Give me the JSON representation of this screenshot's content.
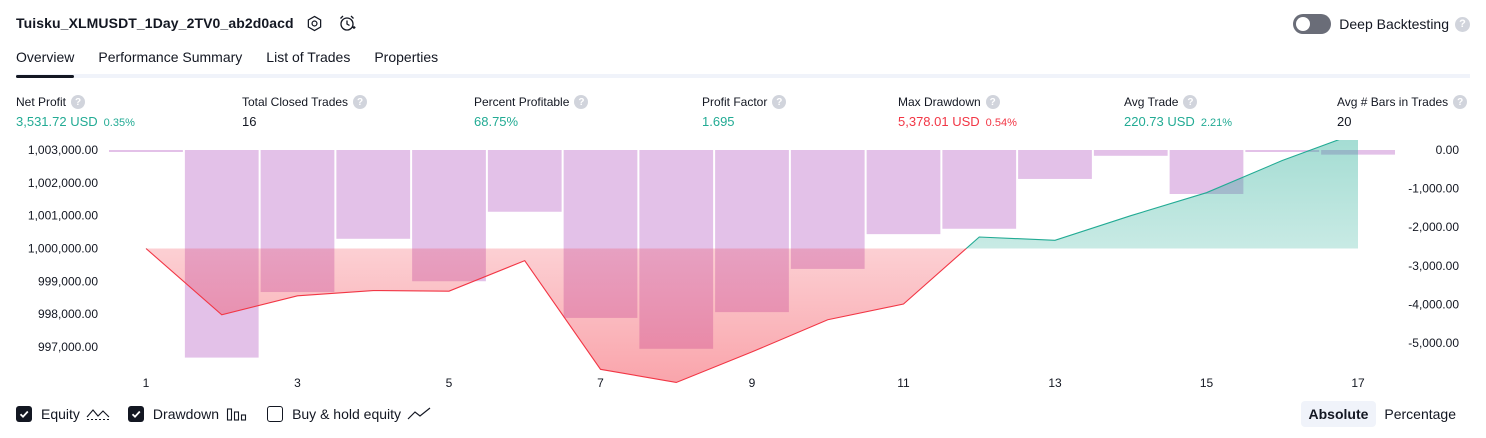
{
  "header": {
    "title": "Tuisku_XLMUSDT_1Day_2TV0_ab2d0acd",
    "deep_backtesting_label": "Deep Backtesting",
    "help_glyph": "?"
  },
  "tabs": [
    {
      "label": "Overview",
      "active": true
    },
    {
      "label": "Performance Summary",
      "active": false
    },
    {
      "label": "List of Trades",
      "active": false
    },
    {
      "label": "Properties",
      "active": false
    }
  ],
  "stats": {
    "net_profit": {
      "label": "Net Profit",
      "value": "3,531.72 USD",
      "pct": "0.35%"
    },
    "total_closed_trades": {
      "label": "Total Closed Trades",
      "value": "16"
    },
    "percent_profitable": {
      "label": "Percent Profitable",
      "value": "68.75%"
    },
    "profit_factor": {
      "label": "Profit Factor",
      "value": "1.695"
    },
    "max_drawdown": {
      "label": "Max Drawdown",
      "value": "5,378.01 USD",
      "pct": "0.54%"
    },
    "avg_trade": {
      "label": "Avg Trade",
      "value": "220.73 USD",
      "pct": "2.21%"
    },
    "avg_bars": {
      "label": "Avg # Bars in Trades",
      "value": "20"
    }
  },
  "legend": {
    "equity": "Equity",
    "drawdown": "Drawdown",
    "buy_hold": "Buy & hold equity",
    "equity_checked": true,
    "drawdown_checked": true,
    "buy_hold_checked": false
  },
  "mode": {
    "absolute": "Absolute",
    "percentage": "Percentage",
    "selected": "Absolute"
  },
  "colors": {
    "accent_green": "#22ab94",
    "accent_red": "#f23645",
    "drawdown_bar": "#ce93d8"
  },
  "chart_data": {
    "type": "line+bar",
    "x": [
      1,
      2,
      3,
      4,
      5,
      6,
      7,
      8,
      9,
      10,
      11,
      12,
      13,
      14,
      15,
      16,
      17
    ],
    "x_tick_labels": [
      "1",
      "3",
      "5",
      "7",
      "9",
      "11",
      "13",
      "15",
      "17"
    ],
    "left_axis": {
      "ticks": [
        997000,
        998000,
        999000,
        1000000,
        1001000,
        1002000,
        1003000
      ],
      "tick_labels": [
        "997,000.00",
        "998,000.00",
        "999,000.00",
        "1,000,000.00",
        "1,001,000.00",
        "1,002,000.00",
        "1,003,000.00"
      ],
      "ylim": [
        996700,
        1003200
      ]
    },
    "right_axis": {
      "ticks": [
        0,
        -1000,
        -2000,
        -3000,
        -4000,
        -5000
      ],
      "tick_labels": [
        "0.00",
        "-1,000.00",
        "-2,000.00",
        "-3,000.00",
        "-4,000.00",
        "-5,000.00"
      ],
      "ylim": [
        -5400,
        0
      ]
    },
    "baseline": 1000000,
    "series": [
      {
        "name": "Equity",
        "type": "line",
        "values": [
          1000000,
          997980,
          998560,
          998720,
          998700,
          999630,
          996320,
          995920,
          996850,
          997830,
          998310,
          1000350,
          1000250,
          1001000,
          1001700,
          1002680,
          1003530
        ]
      },
      {
        "name": "Drawdown",
        "type": "bar",
        "values": [
          0,
          -5378,
          -3680,
          -2300,
          -3400,
          -1600,
          -4350,
          -5150,
          -4200,
          -3080,
          -2180,
          -2040,
          -750,
          -150,
          -1140,
          -30,
          -120
        ]
      }
    ]
  }
}
